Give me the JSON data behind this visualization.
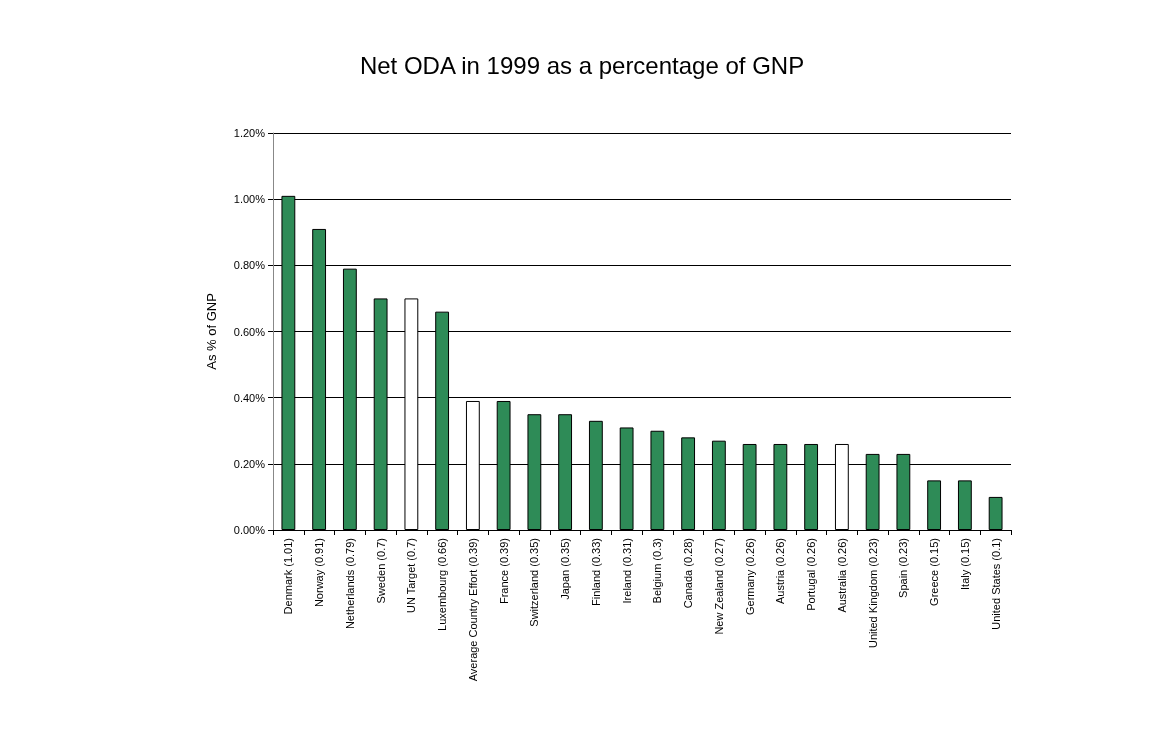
{
  "chart_data": {
    "type": "bar",
    "title": "Net ODA in 1999 as a percentage of GNP",
    "ylabel": "As % of GNP",
    "categories": [
      "Denmark (1.01)",
      "Norway (0.91)",
      "Netherlands (0.79)",
      "Sweden (0.7)",
      "UN Target (0.7)",
      "Luxembourg (0.66)",
      "Average Country Effort (0.39)",
      "France (0.39)",
      "Switzerland (0.35)",
      "Japan (0.35)",
      "Finland (0.33)",
      "Ireland (0.31)",
      "Belgium (0.3)",
      "Canada (0.28)",
      "New Zealand (0.27)",
      "Germany (0.26)",
      "Austria (0.26)",
      "Portugal (0.26)",
      "Australia (0.26)",
      "United Kingdom (0.23)",
      "Spain (0.23)",
      "Greece (0.15)",
      "Italy (0.15)",
      "United States (0.1)"
    ],
    "values": [
      1.01,
      0.91,
      0.79,
      0.7,
      0.7,
      0.66,
      0.39,
      0.39,
      0.35,
      0.35,
      0.33,
      0.31,
      0.3,
      0.28,
      0.27,
      0.26,
      0.26,
      0.26,
      0.26,
      0.23,
      0.23,
      0.15,
      0.15,
      0.1
    ],
    "colors": [
      "#2e8b57",
      "#2e8b57",
      "#2e8b57",
      "#2e8b57",
      "#ffffff",
      "#2e8b57",
      "#ffffff",
      "#2e8b57",
      "#2e8b57",
      "#2e8b57",
      "#2e8b57",
      "#2e8b57",
      "#2e8b57",
      "#2e8b57",
      "#2e8b57",
      "#2e8b57",
      "#2e8b57",
      "#2e8b57",
      "#ffffff",
      "#2e8b57",
      "#2e8b57",
      "#2e8b57",
      "#2e8b57",
      "#2e8b57"
    ],
    "ylim": [
      0,
      1.2
    ],
    "yticks": [
      {
        "value": 0,
        "label": "0.00%"
      },
      {
        "value": 0.2,
        "label": "0.20%"
      },
      {
        "value": 0.4,
        "label": "0.40%"
      },
      {
        "value": 0.6,
        "label": "0.60%"
      },
      {
        "value": 0.8,
        "label": "0.80%"
      },
      {
        "value": 1,
        "label": "1.00%"
      },
      {
        "value": 1.2,
        "label": "1.20%"
      }
    ],
    "grid": "y"
  }
}
